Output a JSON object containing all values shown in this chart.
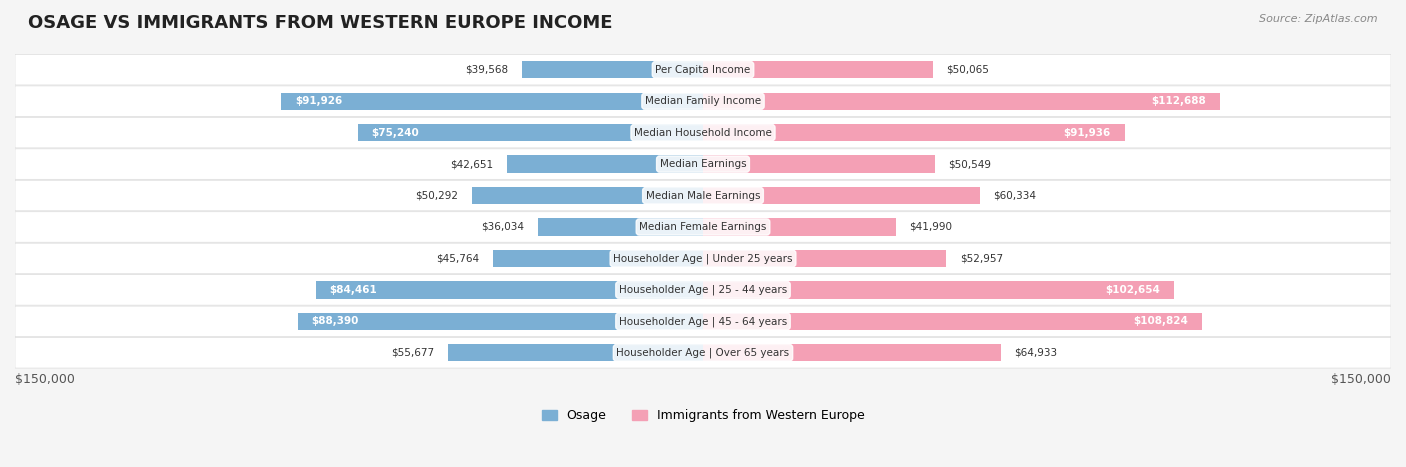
{
  "title": "OSAGE VS IMMIGRANTS FROM WESTERN EUROPE INCOME",
  "source": "Source: ZipAtlas.com",
  "categories": [
    "Per Capita Income",
    "Median Family Income",
    "Median Household Income",
    "Median Earnings",
    "Median Male Earnings",
    "Median Female Earnings",
    "Householder Age | Under 25 years",
    "Householder Age | 25 - 44 years",
    "Householder Age | 45 - 64 years",
    "Householder Age | Over 65 years"
  ],
  "osage_values": [
    39568,
    91926,
    75240,
    42651,
    50292,
    36034,
    45764,
    84461,
    88390,
    55677
  ],
  "immigrant_values": [
    50065,
    112688,
    91936,
    50549,
    60334,
    41990,
    52957,
    102654,
    108824,
    64933
  ],
  "osage_labels": [
    "$39,568",
    "$91,926",
    "$75,240",
    "$42,651",
    "$50,292",
    "$36,034",
    "$45,764",
    "$84,461",
    "$88,390",
    "$55,677"
  ],
  "immigrant_labels": [
    "$50,065",
    "$112,688",
    "$91,936",
    "$50,549",
    "$60,334",
    "$41,990",
    "$52,957",
    "$102,654",
    "$108,824",
    "$64,933"
  ],
  "max_value": 150000,
  "osage_color": "#7bafd4",
  "immigrant_color": "#f4a0b5",
  "osage_color_dark": "#5b8db8",
  "immigrant_color_dark": "#e8688a",
  "bg_color": "#f5f5f5",
  "row_bg": "#ffffff",
  "bar_height": 0.55,
  "legend_osage": "Osage",
  "legend_immigrant": "Immigrants from Western Europe",
  "xlabel_left": "$150,000",
  "xlabel_right": "$150,000"
}
